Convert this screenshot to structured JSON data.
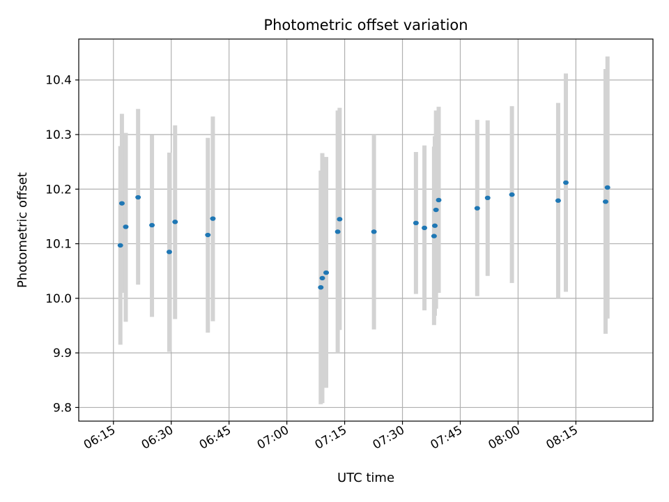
{
  "chart_data": {
    "type": "scatter",
    "title": "Photometric offset variation",
    "xlabel": "UTC time",
    "ylabel": "Photometric offset",
    "x_unit": "UTC time (HH:MM)",
    "xlim": [
      "06:06",
      "08:35"
    ],
    "ylim": [
      9.775,
      10.475
    ],
    "xticks": [
      "06:15",
      "06:30",
      "06:45",
      "07:00",
      "07:15",
      "07:30",
      "07:45",
      "08:00",
      "08:15"
    ],
    "yticks": [
      "9.8",
      "9.9",
      "10.0",
      "10.1",
      "10.2",
      "10.3",
      "10.4"
    ],
    "grid": true,
    "colors": {
      "marker": "#1f77b4",
      "errorbar": "#d3d3d3",
      "grid": "#b0b0b0"
    },
    "series": [
      {
        "points": [
          {
            "x": "06:16:48",
            "y": 10.097,
            "ylow": 9.915,
            "yhigh": 10.279
          },
          {
            "x": "06:17:12",
            "y": 10.174,
            "ylow": 10.01,
            "yhigh": 10.338
          },
          {
            "x": "06:18:12",
            "y": 10.131,
            "ylow": 9.957,
            "yhigh": 10.303
          },
          {
            "x": "06:21:24",
            "y": 10.185,
            "ylow": 10.025,
            "yhigh": 10.347
          },
          {
            "x": "06:25:00",
            "y": 10.134,
            "ylow": 9.966,
            "yhigh": 10.299
          },
          {
            "x": "06:29:30",
            "y": 10.085,
            "ylow": 9.902,
            "yhigh": 10.267
          },
          {
            "x": "06:31:00",
            "y": 10.14,
            "ylow": 9.962,
            "yhigh": 10.317
          },
          {
            "x": "06:39:30",
            "y": 10.116,
            "ylow": 9.937,
            "yhigh": 10.294
          },
          {
            "x": "06:40:48",
            "y": 10.146,
            "ylow": 9.958,
            "yhigh": 10.333
          },
          {
            "x": "07:08:48",
            "y": 10.02,
            "ylow": 9.806,
            "yhigh": 10.234
          },
          {
            "x": "07:09:12",
            "y": 10.037,
            "ylow": 9.808,
            "yhigh": 10.266
          },
          {
            "x": "07:10:12",
            "y": 10.047,
            "ylow": 9.836,
            "yhigh": 10.259
          },
          {
            "x": "07:13:12",
            "y": 10.122,
            "ylow": 9.9,
            "yhigh": 10.344
          },
          {
            "x": "07:13:42",
            "y": 10.145,
            "ylow": 9.942,
            "yhigh": 10.349
          },
          {
            "x": "07:22:36",
            "y": 10.122,
            "ylow": 9.943,
            "yhigh": 10.3
          },
          {
            "x": "07:33:30",
            "y": 10.138,
            "ylow": 10.008,
            "yhigh": 10.268
          },
          {
            "x": "07:35:42",
            "y": 10.129,
            "ylow": 9.978,
            "yhigh": 10.28
          },
          {
            "x": "07:38:12",
            "y": 10.114,
            "ylow": 9.951,
            "yhigh": 10.278
          },
          {
            "x": "07:38:24",
            "y": 10.133,
            "ylow": 9.968,
            "yhigh": 10.297
          },
          {
            "x": "07:38:42",
            "y": 10.162,
            "ylow": 9.981,
            "yhigh": 10.344
          },
          {
            "x": "07:39:24",
            "y": 10.18,
            "ylow": 10.01,
            "yhigh": 10.351
          },
          {
            "x": "07:49:24",
            "y": 10.165,
            "ylow": 10.004,
            "yhigh": 10.327
          },
          {
            "x": "07:52:06",
            "y": 10.184,
            "ylow": 10.041,
            "yhigh": 10.326
          },
          {
            "x": "07:58:24",
            "y": 10.19,
            "ylow": 10.028,
            "yhigh": 10.352
          },
          {
            "x": "08:10:24",
            "y": 10.179,
            "ylow": 10.0,
            "yhigh": 10.358
          },
          {
            "x": "08:12:24",
            "y": 10.212,
            "ylow": 10.012,
            "yhigh": 10.412
          },
          {
            "x": "08:22:42",
            "y": 10.177,
            "ylow": 9.935,
            "yhigh": 10.42
          },
          {
            "x": "08:23:12",
            "y": 10.203,
            "ylow": 9.963,
            "yhigh": 10.443
          }
        ]
      }
    ]
  }
}
